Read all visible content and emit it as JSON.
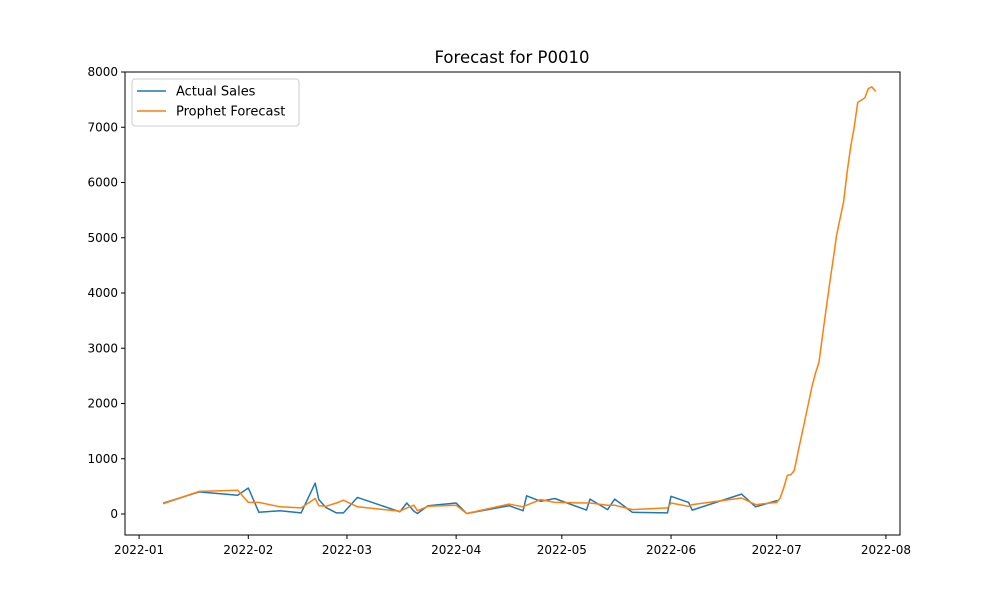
{
  "chart_data": {
    "type": "line",
    "title": "Forecast for P0010",
    "xlabel": "",
    "ylabel": "",
    "x_axis_type": "date",
    "xlim": [
      "2021-12-28",
      "2022-08-05"
    ],
    "ylim": [
      -380,
      8000
    ],
    "x_ticks": [
      "2022-01",
      "2022-02",
      "2022-03",
      "2022-04",
      "2022-05",
      "2022-06",
      "2022-07",
      "2022-08"
    ],
    "x_tick_dates": [
      "2022-01-01",
      "2022-02-01",
      "2022-03-01",
      "2022-04-01",
      "2022-05-01",
      "2022-06-01",
      "2022-07-01",
      "2022-08-01"
    ],
    "y_ticks": [
      0,
      1000,
      2000,
      3000,
      4000,
      5000,
      6000,
      7000,
      8000
    ],
    "grid": false,
    "legend_position": "top-left",
    "series": [
      {
        "name": "Actual Sales",
        "color": "#1f77b4",
        "points": [
          [
            "2022-01-08",
            200
          ],
          [
            "2022-01-18",
            400
          ],
          [
            "2022-01-29",
            340
          ],
          [
            "2022-02-01",
            470
          ],
          [
            "2022-02-04",
            30
          ],
          [
            "2022-02-10",
            60
          ],
          [
            "2022-02-16",
            20
          ],
          [
            "2022-02-20",
            560
          ],
          [
            "2022-02-21",
            260
          ],
          [
            "2022-02-23",
            120
          ],
          [
            "2022-02-26",
            20
          ],
          [
            "2022-02-28",
            20
          ],
          [
            "2022-03-04",
            300
          ],
          [
            "2022-03-16",
            40
          ],
          [
            "2022-03-18",
            200
          ],
          [
            "2022-03-20",
            50
          ],
          [
            "2022-03-21",
            10
          ],
          [
            "2022-03-24",
            150
          ],
          [
            "2022-04-01",
            200
          ],
          [
            "2022-04-04",
            10
          ],
          [
            "2022-04-16",
            150
          ],
          [
            "2022-04-20",
            60
          ],
          [
            "2022-04-21",
            330
          ],
          [
            "2022-04-25",
            230
          ],
          [
            "2022-04-29",
            280
          ],
          [
            "2022-05-08",
            70
          ],
          [
            "2022-05-09",
            270
          ],
          [
            "2022-05-14",
            80
          ],
          [
            "2022-05-16",
            270
          ],
          [
            "2022-05-21",
            30
          ],
          [
            "2022-05-31",
            20
          ],
          [
            "2022-06-01",
            320
          ],
          [
            "2022-06-06",
            210
          ],
          [
            "2022-06-07",
            70
          ],
          [
            "2022-06-21",
            360
          ],
          [
            "2022-06-25",
            130
          ],
          [
            "2022-07-01",
            240
          ]
        ]
      },
      {
        "name": "Prophet Forecast",
        "color": "#ff7f0e",
        "points": [
          [
            "2022-01-08",
            190
          ],
          [
            "2022-01-18",
            410
          ],
          [
            "2022-01-29",
            430
          ],
          [
            "2022-02-01",
            210
          ],
          [
            "2022-02-04",
            210
          ],
          [
            "2022-02-10",
            130
          ],
          [
            "2022-02-16",
            110
          ],
          [
            "2022-02-20",
            280
          ],
          [
            "2022-02-21",
            150
          ],
          [
            "2022-02-23",
            140
          ],
          [
            "2022-02-26",
            200
          ],
          [
            "2022-02-28",
            250
          ],
          [
            "2022-03-04",
            130
          ],
          [
            "2022-03-16",
            50
          ],
          [
            "2022-03-18",
            110
          ],
          [
            "2022-03-20",
            160
          ],
          [
            "2022-03-21",
            60
          ],
          [
            "2022-03-24",
            140
          ],
          [
            "2022-04-01",
            160
          ],
          [
            "2022-04-04",
            10
          ],
          [
            "2022-04-16",
            180
          ],
          [
            "2022-04-20",
            130
          ],
          [
            "2022-04-21",
            160
          ],
          [
            "2022-04-25",
            260
          ],
          [
            "2022-04-29",
            210
          ],
          [
            "2022-05-08",
            200
          ],
          [
            "2022-05-09",
            200
          ],
          [
            "2022-05-14",
            160
          ],
          [
            "2022-05-16",
            160
          ],
          [
            "2022-05-21",
            80
          ],
          [
            "2022-05-31",
            110
          ],
          [
            "2022-06-01",
            200
          ],
          [
            "2022-06-06",
            140
          ],
          [
            "2022-06-07",
            170
          ],
          [
            "2022-06-21",
            290
          ],
          [
            "2022-06-25",
            170
          ],
          [
            "2022-07-01",
            210
          ],
          [
            "2022-07-02",
            290
          ],
          [
            "2022-07-03",
            480
          ],
          [
            "2022-07-04",
            700
          ],
          [
            "2022-07-05",
            710
          ],
          [
            "2022-07-06",
            790
          ],
          [
            "2022-07-07",
            1100
          ],
          [
            "2022-07-09",
            1700
          ],
          [
            "2022-07-10",
            2000
          ],
          [
            "2022-07-11",
            2300
          ],
          [
            "2022-07-12",
            2550
          ],
          [
            "2022-07-13",
            2750
          ],
          [
            "2022-07-15",
            3700
          ],
          [
            "2022-07-16",
            4150
          ],
          [
            "2022-07-17",
            4600
          ],
          [
            "2022-07-18",
            5050
          ],
          [
            "2022-07-20",
            5650
          ],
          [
            "2022-07-21",
            6200
          ],
          [
            "2022-07-22",
            6650
          ],
          [
            "2022-07-23",
            7000
          ],
          [
            "2022-07-24",
            7450
          ],
          [
            "2022-07-26",
            7530
          ],
          [
            "2022-07-27",
            7700
          ],
          [
            "2022-07-28",
            7730
          ],
          [
            "2022-07-29",
            7660
          ]
        ]
      }
    ]
  }
}
